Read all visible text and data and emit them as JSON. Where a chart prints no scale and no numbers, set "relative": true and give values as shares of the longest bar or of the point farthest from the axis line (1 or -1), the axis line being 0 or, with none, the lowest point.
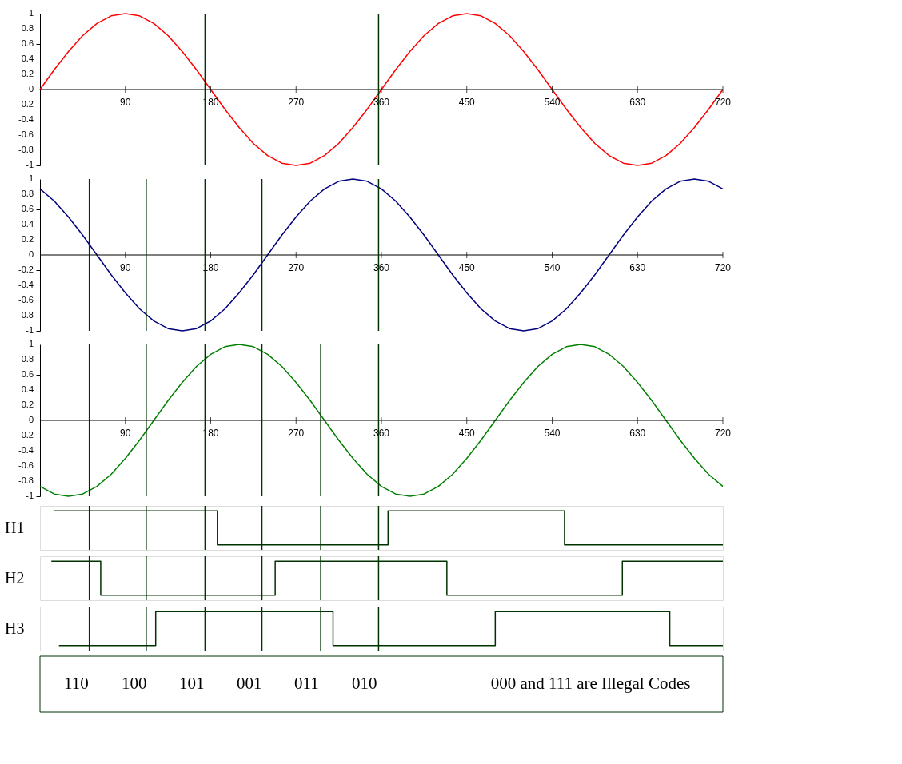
{
  "chart_data": [
    {
      "type": "line",
      "x": [
        0,
        15,
        30,
        45,
        60,
        75,
        90,
        105,
        120,
        135,
        150,
        165,
        180,
        195,
        210,
        225,
        240,
        255,
        270,
        285,
        300,
        315,
        330,
        345,
        360,
        375,
        390,
        405,
        420,
        435,
        450,
        465,
        480,
        495,
        510,
        525,
        540,
        555,
        570,
        585,
        600,
        615,
        630,
        645,
        660,
        675,
        690,
        705,
        720
      ],
      "xlim": [
        0,
        720
      ],
      "xticks": [
        90,
        180,
        270,
        360,
        450,
        540,
        630,
        720
      ],
      "ylim": [
        -1,
        1
      ],
      "yticks": [
        -1,
        -0.8,
        -0.6,
        -0.4,
        -0.2,
        0,
        0.2,
        0.4,
        0.6,
        0.8,
        1
      ],
      "series": [
        {
          "color": "#ff0000",
          "values": [
            0,
            0.26,
            0.5,
            0.71,
            0.87,
            0.97,
            1,
            0.97,
            0.87,
            0.71,
            0.5,
            0.26,
            0,
            -0.26,
            -0.5,
            -0.71,
            -0.87,
            -0.97,
            -1,
            -0.97,
            -0.87,
            -0.71,
            -0.5,
            -0.26,
            0,
            0.26,
            0.5,
            0.71,
            0.87,
            0.97,
            1,
            0.97,
            0.87,
            0.71,
            0.5,
            0.26,
            0,
            -0.26,
            -0.5,
            -0.71,
            -0.87,
            -0.97,
            -1,
            -0.97,
            -0.87,
            -0.71,
            -0.5,
            -0.26,
            0
          ]
        }
      ],
      "ref_lines": [
        {
          "axis": "x",
          "value": 174,
          "color": "#003300"
        },
        {
          "axis": "x",
          "value": 357,
          "color": "#003300"
        }
      ]
    },
    {
      "type": "line",
      "x": [
        0,
        15,
        30,
        45,
        60,
        75,
        90,
        105,
        120,
        135,
        150,
        165,
        180,
        195,
        210,
        225,
        240,
        255,
        270,
        285,
        300,
        315,
        330,
        345,
        360,
        375,
        390,
        405,
        420,
        435,
        450,
        465,
        480,
        495,
        510,
        525,
        540,
        555,
        570,
        585,
        600,
        615,
        630,
        645,
        660,
        675,
        690,
        705,
        720
      ],
      "xlim": [
        0,
        720
      ],
      "xticks": [
        90,
        180,
        270,
        360,
        450,
        540,
        630,
        720
      ],
      "ylim": [
        -1,
        1
      ],
      "yticks": [
        -1,
        -0.8,
        -0.6,
        -0.4,
        -0.2,
        0,
        0.2,
        0.4,
        0.6,
        0.8,
        1
      ],
      "series": [
        {
          "color": "#000080",
          "values": [
            0.87,
            0.71,
            0.5,
            0.26,
            0,
            -0.26,
            -0.5,
            -0.71,
            -0.87,
            -0.97,
            -1,
            -0.97,
            -0.87,
            -0.71,
            -0.5,
            -0.26,
            0,
            0.26,
            0.5,
            0.71,
            0.87,
            0.97,
            1,
            0.97,
            0.87,
            0.71,
            0.5,
            0.26,
            0,
            -0.26,
            -0.5,
            -0.71,
            -0.87,
            -0.97,
            -1,
            -0.97,
            -0.87,
            -0.71,
            -0.5,
            -0.26,
            0,
            0.26,
            0.5,
            0.71,
            0.87,
            0.97,
            1,
            0.97,
            0.87
          ]
        }
      ],
      "ref_lines": [
        {
          "axis": "x",
          "value": 52,
          "color": "#003300"
        },
        {
          "axis": "x",
          "value": 112,
          "color": "#003300"
        },
        {
          "axis": "x",
          "value": 174,
          "color": "#003300"
        },
        {
          "axis": "x",
          "value": 234,
          "color": "#003300"
        },
        {
          "axis": "x",
          "value": 357,
          "color": "#003300"
        }
      ]
    },
    {
      "type": "line",
      "x": [
        0,
        15,
        30,
        45,
        60,
        75,
        90,
        105,
        120,
        135,
        150,
        165,
        180,
        195,
        210,
        225,
        240,
        255,
        270,
        285,
        300,
        315,
        330,
        345,
        360,
        375,
        390,
        405,
        420,
        435,
        450,
        465,
        480,
        495,
        510,
        525,
        540,
        555,
        570,
        585,
        600,
        615,
        630,
        645,
        660,
        675,
        690,
        705,
        720
      ],
      "xlim": [
        0,
        720
      ],
      "xticks": [
        90,
        180,
        270,
        360,
        450,
        540,
        630,
        720
      ],
      "ylim": [
        -1,
        1
      ],
      "yticks": [
        -1,
        -0.8,
        -0.6,
        -0.4,
        -0.2,
        0,
        0.2,
        0.4,
        0.6,
        0.8,
        1
      ],
      "series": [
        {
          "color": "#008000",
          "values": [
            -0.87,
            -0.97,
            -1,
            -0.97,
            -0.87,
            -0.71,
            -0.5,
            -0.26,
            0,
            0.26,
            0.5,
            0.71,
            0.87,
            0.97,
            1,
            0.97,
            0.87,
            0.71,
            0.5,
            0.26,
            0,
            -0.26,
            -0.5,
            -0.71,
            -0.87,
            -0.97,
            -1,
            -0.97,
            -0.87,
            -0.71,
            -0.5,
            -0.26,
            0,
            0.26,
            0.5,
            0.71,
            0.87,
            0.97,
            1,
            0.97,
            0.87,
            0.71,
            0.5,
            0.26,
            0,
            -0.26,
            -0.5,
            -0.71,
            -0.87
          ]
        }
      ],
      "ref_lines": [
        {
          "axis": "x",
          "value": 52,
          "color": "#003300"
        },
        {
          "axis": "x",
          "value": 112,
          "color": "#003300"
        },
        {
          "axis": "x",
          "value": 174,
          "color": "#003300"
        },
        {
          "axis": "x",
          "value": 234,
          "color": "#003300"
        },
        {
          "axis": "x",
          "value": 296,
          "color": "#003300"
        },
        {
          "axis": "x",
          "value": 357,
          "color": "#003300"
        }
      ]
    },
    {
      "type": "step",
      "relative": true,
      "xlim": [
        0,
        720
      ],
      "series": [
        {
          "name": "H1",
          "color": "#003300",
          "x": [
            15,
            187,
            367,
            553,
            720
          ],
          "values": [
            1,
            0,
            1,
            0,
            0
          ]
        }
      ],
      "ref_lines": [
        {
          "axis": "x",
          "value": 52,
          "color": "#003300"
        },
        {
          "axis": "x",
          "value": 112,
          "color": "#003300"
        },
        {
          "axis": "x",
          "value": 174,
          "color": "#003300"
        },
        {
          "axis": "x",
          "value": 234,
          "color": "#003300"
        },
        {
          "axis": "x",
          "value": 296,
          "color": "#003300"
        },
        {
          "axis": "x",
          "value": 357,
          "color": "#003300"
        }
      ]
    },
    {
      "type": "step",
      "relative": true,
      "xlim": [
        0,
        720
      ],
      "series": [
        {
          "name": "H2",
          "color": "#003300",
          "x": [
            12,
            64,
            248,
            429,
            614,
            720
          ],
          "values": [
            1,
            0,
            1,
            0,
            1,
            1
          ]
        }
      ],
      "ref_lines": [
        {
          "axis": "x",
          "value": 52,
          "color": "#003300"
        },
        {
          "axis": "x",
          "value": 112,
          "color": "#003300"
        },
        {
          "axis": "x",
          "value": 174,
          "color": "#003300"
        },
        {
          "axis": "x",
          "value": 234,
          "color": "#003300"
        },
        {
          "axis": "x",
          "value": 296,
          "color": "#003300"
        },
        {
          "axis": "x",
          "value": 357,
          "color": "#003300"
        }
      ]
    },
    {
      "type": "step",
      "relative": true,
      "xlim": [
        0,
        720
      ],
      "series": [
        {
          "name": "H3",
          "color": "#003300",
          "x": [
            20,
            122,
            309,
            480,
            664,
            720
          ],
          "values": [
            0,
            1,
            0,
            1,
            0,
            0
          ]
        }
      ],
      "ref_lines": [
        {
          "axis": "x",
          "value": 52,
          "color": "#003300"
        },
        {
          "axis": "x",
          "value": 112,
          "color": "#003300"
        },
        {
          "axis": "x",
          "value": 174,
          "color": "#003300"
        },
        {
          "axis": "x",
          "value": 234,
          "color": "#003300"
        },
        {
          "axis": "x",
          "value": 296,
          "color": "#003300"
        },
        {
          "axis": "x",
          "value": 357,
          "color": "#003300"
        }
      ]
    },
    {
      "type": "other",
      "annotations": [
        "110",
        "100",
        "101",
        "001",
        "011",
        "010",
        "000 and 111 are Illegal Codes"
      ]
    }
  ]
}
